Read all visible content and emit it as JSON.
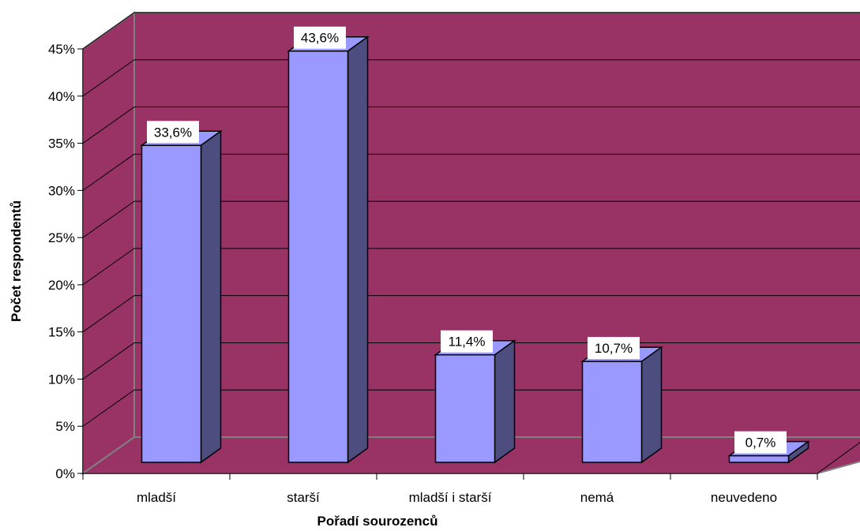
{
  "chart_data": {
    "type": "bar",
    "title": "",
    "xlabel": "Pořadí sourozenců",
    "ylabel": "Počet respondentů",
    "categories": [
      "mladší",
      "starší",
      "mladší i starší",
      "nemá",
      "neuvedeno"
    ],
    "values": [
      33.6,
      43.6,
      11.4,
      10.7,
      0.7
    ],
    "data_labels": [
      "33,6%",
      "43,6%",
      "11,4%",
      "10,7%",
      "0,7%"
    ],
    "ylim": [
      0,
      45
    ],
    "yticks": [
      0,
      5,
      10,
      15,
      20,
      25,
      30,
      35,
      40,
      45
    ],
    "ytick_labels": [
      "0%",
      "5%",
      "10%",
      "15%",
      "20%",
      "25%",
      "30%",
      "35%",
      "40%",
      "45%"
    ],
    "grid": true,
    "legend": "none",
    "three_d": true,
    "colors": {
      "wall": "#993366",
      "floor": "#993366",
      "bar_front": "#9999ff",
      "bar_side": "#4d4d80",
      "bar_top": "#9999ff",
      "gridline": "#000000",
      "wall_edge": "#808080"
    }
  }
}
